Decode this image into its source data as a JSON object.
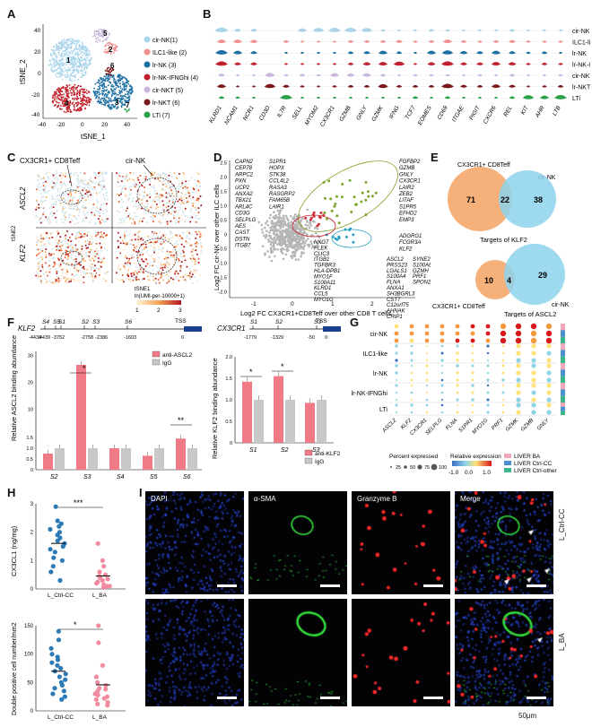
{
  "panel_labels": [
    "A",
    "B",
    "C",
    "D",
    "E",
    "F",
    "G",
    "H",
    "I"
  ],
  "colors": {
    "cir_nk": "#a9d4ea",
    "ilc1_like": "#f2908f",
    "lr_nk": "#1d6fa2",
    "lr_nk_ifng": "#c0202b",
    "cir_nkt": "#c9b6dc",
    "lr_nkt": "#7b1a1c",
    "lti": "#2aa14a",
    "bar_pink": "#f07b86",
    "bar_grey": "#c8c8c8",
    "venn_orange": "#f6b07a",
    "venn_blue": "#8dd3ec"
  },
  "panelA": {
    "xlabel": "tSNE_1",
    "ylabel": "tSNE_2",
    "xticks": [
      "-40",
      "-20",
      "0",
      "20",
      "40"
    ],
    "yticks": [
      "40",
      "20",
      "0",
      "-20",
      "-40"
    ],
    "cluster_numbers": [
      "1",
      "2",
      "3",
      "4",
      "5",
      "6",
      "7"
    ],
    "legend": [
      "cir-NK(1)",
      "ILC1-like (2)",
      "lr-NK (3)",
      "lr-NK-IFNGhi (4)",
      "cir-NKT (5)",
      "lr-NKT (6)",
      "LTi (7)"
    ]
  },
  "panelB": {
    "genes": [
      "KLRD1",
      "NCAM1",
      "NCR1",
      "CD3D",
      "IL7R",
      "SELL",
      "MYOM2",
      "CX3CR1",
      "GZMB",
      "GNLY",
      "GZMK",
      "IFNG",
      "TCF7",
      "EOMES",
      "CD69",
      "ITGAE",
      "PIGIT",
      "CXCR6",
      "REL",
      "KIT",
      "AHR",
      "LTB"
    ],
    "rows": [
      "cir-NK",
      "ILC1-like",
      "lr-NK",
      "lr-NK-IFNGhi",
      "cir-NKT",
      "lr-NKT",
      "LTi"
    ]
  },
  "panelC": {
    "top_left_label": "CX3CR1+ CD8Teff",
    "top_right_label": "cir-NK",
    "row_labels": [
      "ASCL2",
      "KLF2"
    ],
    "axis_y": "tSNE2",
    "axis_x": "tSNE1",
    "colorbar_title": "ln(UMI-per-10000+1)",
    "colorbar_ticks": [
      "1",
      "2",
      "3"
    ]
  },
  "panelD": {
    "xlabel": "Log2 FC CX3CR1+CD8Teff over other CD8 T cells",
    "ylabel": "Log2 FC cir-NK over other ILC cells",
    "xticks": [
      "-1",
      "0",
      "1",
      "2"
    ],
    "yticks": [
      "2.5",
      "2.0",
      "1.5",
      "1.0",
      "0.5",
      "0",
      "-0.5",
      "-1.0",
      "-1.5",
      "-2.0"
    ],
    "list_left_a": [
      "CAPN2",
      "CEP78",
      "ARPC2",
      "PXN",
      "UCP2",
      "ANXA2",
      "TBX21",
      "ARL4C",
      "CD3G",
      "SELPLG",
      "AES",
      "CAST",
      "DSTN",
      "ITGB7"
    ],
    "list_left_b": [
      "S1PR1",
      "HOPX",
      "STK38",
      "CCL4L2",
      "RASA3",
      "RASGRP2",
      "FAM65B",
      "LAIR1"
    ],
    "list_top_right": [
      "FGFBP2",
      "GZMB",
      "GNLY",
      "CX3CR1",
      "LAIR2",
      "ZEB2",
      "LITAF",
      "S1PR5",
      "EFHD2",
      "EMP3"
    ],
    "list_mid_right": [
      "ADGRG1",
      "FCGR3A",
      "KLF2"
    ],
    "list_bottom_mid": [
      "NKG7",
      "PLEK",
      "CLIC3",
      "ITGB1",
      "TGFBR3",
      "HLA-DPB1",
      "MYO1F",
      "S100A11",
      "KLRD1",
      "CCL5",
      "MYO1G"
    ],
    "list_bottom_right_a": [
      "ASCL2",
      "PRSS23",
      "LGALS1",
      "S100A4",
      "FLNA",
      "ANXA1",
      "SH3BGRL3",
      "CST7",
      "C12orf75",
      "AHNAK",
      "CRIP1",
      "CD52"
    ],
    "list_bottom_right_b": [
      "SYNE2",
      "S100A6",
      "GZMH",
      "PRF1",
      "SPON2"
    ]
  },
  "panelE": {
    "venn1": {
      "left_label": "CX3CR1+ CD8Teff",
      "right_label": "cir-NK",
      "left": "71",
      "overlap": "22",
      "right": "38",
      "caption": "Targets of KLF2"
    },
    "venn2": {
      "left_label": "CX3CR1+ CD8Teff",
      "right_label": "cir-NK",
      "left": "10",
      "overlap": "4",
      "right": "29",
      "caption": "Targets of ASCL2"
    }
  },
  "panelF": {
    "klf2_gene": "KLF2",
    "cx3cr1_gene": "CX3CR1",
    "tss": "TSS",
    "klf2_sites": [
      "S4",
      "S5",
      "S1",
      "S2",
      "S3",
      "S6"
    ],
    "klf2_positions": [
      "-4439",
      "-4439",
      "-3752",
      "-2758",
      "-2386",
      "-1603",
      "0"
    ],
    "cx3cr1_sites": [
      "S1",
      "S2",
      "S3"
    ],
    "cx3cr1_positions": [
      "-1779",
      "-1329",
      "-50",
      "0"
    ],
    "left_chart": {
      "ylabel": "Relative ASCL2 binding abundance",
      "legend": [
        "anti-ASCL2",
        "IgG"
      ],
      "categories": [
        "S2",
        "S3",
        "S4",
        "S5",
        "S6"
      ],
      "yticks": [
        "30",
        "20",
        "10",
        "1.5",
        "1.0",
        "0.5",
        "0"
      ],
      "sig": [
        "*",
        "**"
      ]
    },
    "right_chart": {
      "ylabel": "Relative KLF2 binding abundance",
      "legend": [
        "anti-KLF2",
        "IgG"
      ],
      "categories": [
        "S1",
        "S2",
        "S3"
      ],
      "yticks": [
        "2.0",
        "1.5",
        "1.0",
        "0.5",
        "0"
      ],
      "sig": [
        "*",
        "*"
      ]
    }
  },
  "panelG": {
    "rows": [
      "cir-NK",
      "ILC1-like",
      "lr-NK",
      "lr-NK-IFNGhi",
      "LTi"
    ],
    "genes": [
      "ASCL2",
      "KLF2",
      "CX3CR1",
      "SELPLG",
      "FLNA",
      "S1PR1",
      "MYO1G",
      "PRF1",
      "GZMK",
      "GZMB",
      "GNLY"
    ],
    "size_title": "Percent expressed",
    "size_ticks": [
      "25",
      "50",
      "75",
      "100"
    ],
    "color_title": "Relative expression",
    "color_ticks": [
      "-1.0",
      "0.0",
      "1.0"
    ],
    "sample_legend": [
      "LIVER BA",
      "LIVER Ctrl-CC",
      "LIVER Ctrl-other"
    ]
  },
  "panelH": {
    "top": {
      "ylabel": "CX3CL1 (ng/mg)",
      "yticks": [
        "3",
        "2",
        "1",
        "0"
      ],
      "sig": "***",
      "categories": [
        "L_Ctrl-CC",
        "L_BA"
      ]
    },
    "bottom": {
      "ylabel": "Double positive cell number/mm2",
      "yticks": [
        "150",
        "100",
        "50",
        "0"
      ],
      "sig": "*",
      "categories": [
        "L_Ctrl-CC",
        "L_BA"
      ]
    }
  },
  "panelI": {
    "columns": [
      "DAPI",
      "α-SMA",
      "Granzyme B",
      "Merge"
    ],
    "rows": [
      "L_Ctrl-CC",
      "L_BA"
    ],
    "scale": "50μm"
  },
  "chart_data": [
    {
      "type": "bar",
      "title": "",
      "ylabel": "Relative ASCL2 binding abundance",
      "categories": [
        "S2",
        "S3",
        "S4",
        "S5",
        "S6"
      ],
      "series": [
        {
          "name": "anti-ASCL2",
          "values": [
            0.75,
            26.5,
            1.0,
            0.65,
            1.45
          ]
        },
        {
          "name": "IgG",
          "values": [
            1.0,
            1.0,
            1.0,
            1.0,
            1.0
          ]
        }
      ]
    },
    {
      "type": "bar",
      "title": "",
      "ylabel": "Relative KLF2 binding abundance",
      "categories": [
        "S1",
        "S2",
        "S3"
      ],
      "series": [
        {
          "name": "anti-KLF2",
          "values": [
            1.42,
            1.55,
            0.93
          ]
        },
        {
          "name": "IgG",
          "values": [
            1.0,
            1.0,
            1.0
          ]
        }
      ],
      "ylim": [
        0,
        2.0
      ]
    },
    {
      "type": "scatter",
      "ylabel": "CX3CL1 (ng/mg)",
      "categories": [
        "L_Ctrl-CC",
        "L_BA"
      ],
      "series": [
        {
          "name": "L_Ctrl-CC",
          "values": [
            2.9,
            2.4,
            2.3,
            2.2,
            2.1,
            2.0,
            1.9,
            1.8,
            1.7,
            1.6,
            1.5,
            1.4,
            1.3,
            1.1,
            1.0,
            0.8,
            0.6,
            0.3
          ]
        },
        {
          "name": "L_BA",
          "values": [
            1.6,
            1.0,
            0.8,
            0.6,
            0.5,
            0.45,
            0.4,
            0.35,
            0.3,
            0.25,
            0.2,
            0.15,
            0.1,
            0.1,
            0.05
          ]
        }
      ],
      "ylim": [
        0,
        3
      ]
    },
    {
      "type": "scatter",
      "ylabel": "Double positive cell number/mm2",
      "categories": [
        "L_Ctrl-CC",
        "L_BA"
      ],
      "series": [
        {
          "name": "L_Ctrl-CC",
          "values": [
            140,
            125,
            110,
            100,
            95,
            90,
            85,
            80,
            75,
            70,
            65,
            60,
            55,
            50,
            45,
            40,
            35,
            30,
            25,
            20
          ]
        },
        {
          "name": "L_BA",
          "values": [
            150,
            120,
            80,
            60,
            50,
            45,
            40,
            38,
            35,
            30,
            28,
            25,
            22,
            20,
            15,
            12,
            10
          ]
        }
      ],
      "ylim": [
        0,
        150
      ]
    }
  ]
}
